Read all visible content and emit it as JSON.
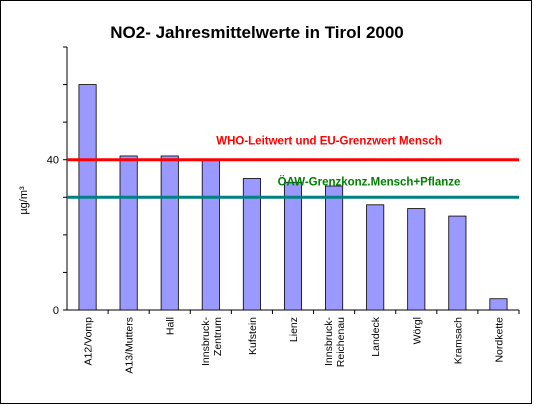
{
  "chart_data": {
    "type": "bar",
    "title": "NO2- Jahresmittelwerte in Tirol 2000",
    "xlabel": "",
    "ylabel": "µg/m³",
    "ylim": [
      0,
      70
    ],
    "yticks": [
      "0",
      "40"
    ],
    "grid": false,
    "bar_color": "#9999ff",
    "categories": [
      "A12/Vomp",
      "A13/Mutters",
      "Hall",
      "Innsbruck-\nZentrum",
      "Kufstein",
      "Lienz",
      "Innsbruck-\nReichenau",
      "Landeck",
      "Wörgl",
      "Kramsach",
      "Nordkette"
    ],
    "values": [
      60,
      41,
      41,
      40,
      35,
      34,
      33,
      28,
      27,
      25,
      3
    ],
    "reference_lines": [
      {
        "label": "WHO-Leitwert und EU-Grenzwert Mensch",
        "value": 40,
        "color": "#ff0000"
      },
      {
        "label": "ÖAW-Grenzkonz.Mensch+Pflanze",
        "value": 30,
        "color": "#008080",
        "label_color": "#008000"
      }
    ]
  }
}
